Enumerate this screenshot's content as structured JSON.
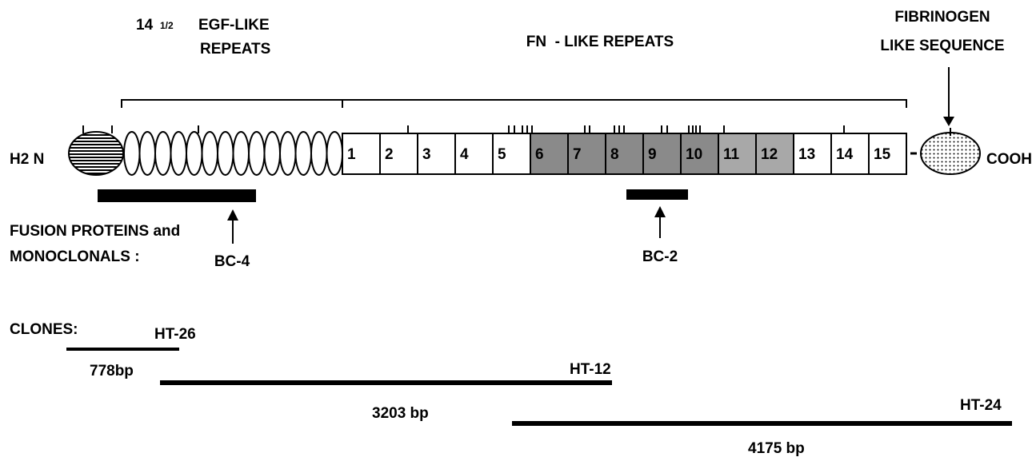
{
  "egf_title": {
    "count": "14",
    "fraction": "1/2",
    "line1": "EGF-LIKE",
    "line2": "REPEATS"
  },
  "fn_title": "FN  - LIKE REPEATS",
  "fibrinogen_title": [
    "FIBRINOGEN",
    "LIKE SEQUENCE"
  ],
  "n_terminus": "H2 N",
  "c_terminus": "COOH",
  "fn_repeats": [
    "1",
    "2",
    "3",
    "4",
    "5",
    "6",
    "7",
    "8",
    "9",
    "10",
    "11",
    "12",
    "13",
    "14",
    "15"
  ],
  "fusion_label": [
    "FUSION PROTEINS and",
    "MONOCLONALS :"
  ],
  "antibodies": [
    "BC-4",
    "BC-2"
  ],
  "clones_label": "CLONES:",
  "clones": [
    {
      "name": "HT-26",
      "size": "778bp"
    },
    {
      "name": "HT-12",
      "size": "3203 bp"
    },
    {
      "name": "HT-24",
      "size": "4175 bp"
    }
  ]
}
